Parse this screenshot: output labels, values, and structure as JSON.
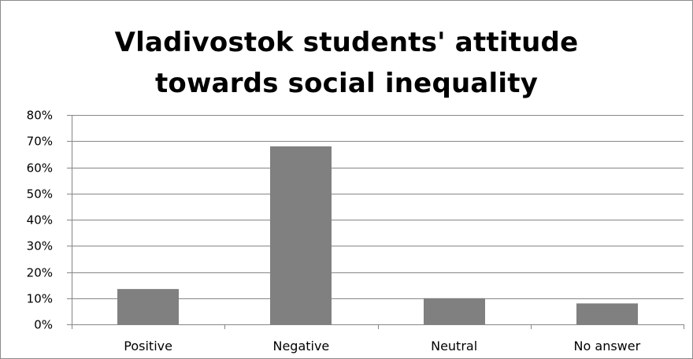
{
  "chart_data": {
    "type": "bar",
    "title": "Vladivostok students' attitude\ntowards social inequality",
    "categories": [
      "Positive",
      "Negative",
      "Neutral",
      "No answer"
    ],
    "values": [
      0.135,
      0.68,
      0.1,
      0.08
    ],
    "ylim": [
      0,
      0.8
    ],
    "yticks": [
      0,
      0.1,
      0.2,
      0.3,
      0.4,
      0.5,
      0.6,
      0.7,
      0.8
    ],
    "ytick_labels": [
      "0%",
      "10%",
      "20%",
      "30%",
      "40%",
      "50%",
      "60%",
      "70%",
      "80%"
    ],
    "xlabel": "",
    "ylabel": "",
    "grid": true,
    "legend": "none",
    "colors": {
      "bar": "#808080",
      "grid": "#868686",
      "axis": "#868686",
      "frame": "#8c8c8c"
    }
  }
}
